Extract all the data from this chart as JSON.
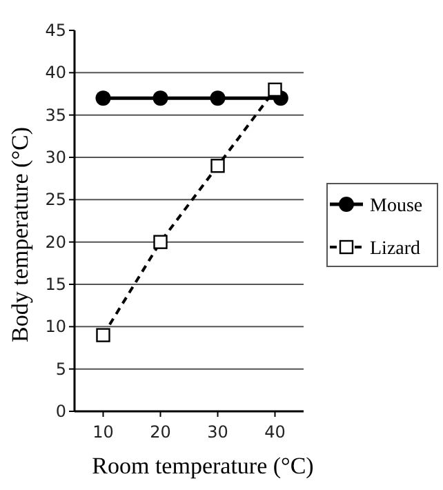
{
  "chart_data": {
    "type": "line",
    "xlabel": "Room temperature (°C)",
    "ylabel": "Body temperature (°C)",
    "xlim": [
      5,
      45
    ],
    "xticks": [
      10,
      20,
      30,
      40
    ],
    "ylim": [
      0,
      45
    ],
    "yticks": [
      0,
      5,
      10,
      15,
      20,
      25,
      30,
      35,
      40,
      45
    ],
    "grid": "y",
    "legend": "right",
    "series": [
      {
        "name": "Mouse",
        "color": "#000000",
        "x": [
          10,
          20,
          30,
          41
        ],
        "values": [
          37,
          37,
          37,
          37
        ],
        "marker": "circle",
        "line_style": "solid"
      },
      {
        "name": "Lizard",
        "color": "#000000",
        "x": [
          10,
          20,
          30,
          40
        ],
        "values": [
          9,
          20,
          29,
          38
        ],
        "marker": "square",
        "line_style": "dashed"
      }
    ]
  }
}
